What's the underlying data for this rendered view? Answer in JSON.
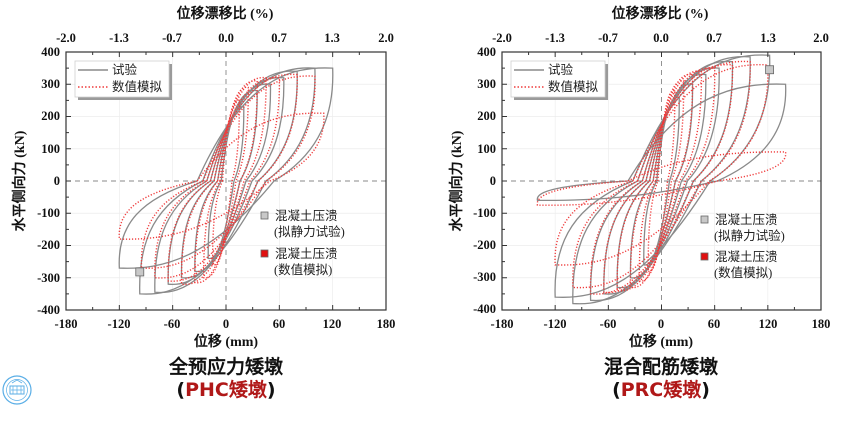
{
  "colors": {
    "test": "#8a8a8a",
    "sim": "#ef3b3b",
    "caption_red": "#b01818",
    "logo": "#5aaee6"
  },
  "logo": {
    "icon": "university-seal-icon"
  },
  "chart_data": [
    {
      "type": "line",
      "id": "phc",
      "top_xlabel": "位移漂移比 (%)",
      "top_ticks": [
        "-2.0",
        "-1.3",
        "-0.7",
        "0.0",
        "0.7",
        "1.3",
        "2.0"
      ],
      "xlabel": "位移 (mm)",
      "ylabel": "水平侧向力 (kN)",
      "xlim": [
        -180,
        180
      ],
      "ylim": [
        -400,
        400
      ],
      "x_ticks": [
        "-180",
        "-120",
        "-60",
        "0",
        "60",
        "120",
        "180"
      ],
      "y_ticks": [
        "400",
        "300",
        "200",
        "100",
        "0",
        "-100",
        "-200",
        "-300",
        "-400"
      ],
      "grid": true,
      "legend": {
        "position": "top-left",
        "entries": [
          "试验",
          "数值模拟"
        ]
      },
      "marker_legend": {
        "position": "right-middle",
        "test_lines": [
          "混凝土压溃",
          "(拟静力试验)"
        ],
        "sim_lines": [
          "混凝土压溃",
          "(数值模拟)"
        ]
      },
      "crush_point_test": [
        -97,
        -282
      ],
      "series": [
        {
          "name": "试验",
          "style": "solid",
          "peaks_pos": [
            [
              20,
              230
            ],
            [
              35,
              280
            ],
            [
              50,
              300
            ],
            [
              65,
              320
            ],
            [
              80,
              340
            ],
            [
              100,
              350
            ],
            [
              120,
              350
            ]
          ],
          "peaks_neg": [
            [
              -20,
              -240
            ],
            [
              -35,
              -280
            ],
            [
              -50,
              -300
            ],
            [
              -65,
              -320
            ],
            [
              -80,
              -345
            ],
            [
              -97,
              -350
            ],
            [
              -120,
              -270
            ]
          ]
        },
        {
          "name": "数值模拟",
          "style": "dotted",
          "peaks_pos": [
            [
              15,
              250
            ],
            [
              25,
              290
            ],
            [
              35,
              310
            ],
            [
              45,
              320
            ],
            [
              60,
              320
            ],
            [
              80,
              330
            ],
            [
              100,
              325
            ],
            [
              110,
              210
            ]
          ],
          "peaks_neg": [
            [
              -15,
              -260
            ],
            [
              -25,
              -300
            ],
            [
              -35,
              -315
            ],
            [
              -50,
              -320
            ],
            [
              -65,
              -310
            ],
            [
              -80,
              -300
            ],
            [
              -95,
              -270
            ],
            [
              -120,
              -180
            ]
          ]
        }
      ],
      "caption_line1": "全预应力矮墩",
      "caption_open": "(",
      "caption_red": "PHC矮墩",
      "caption_close": ")"
    },
    {
      "type": "line",
      "id": "prc",
      "top_xlabel": "位移漂移比 (%)",
      "top_ticks": [
        "-2.0",
        "-1.3",
        "-0.7",
        "0.0",
        "0.7",
        "1.3",
        "2.0"
      ],
      "xlabel": "位移 (mm)",
      "ylabel": "水平侧向力 (kN)",
      "xlim": [
        -180,
        180
      ],
      "ylim": [
        -400,
        400
      ],
      "x_ticks": [
        "-180",
        "-120",
        "-60",
        "0",
        "60",
        "120",
        "180"
      ],
      "y_ticks": [
        "400",
        "300",
        "200",
        "100",
        "0",
        "-100",
        "-200",
        "-300",
        "-400"
      ],
      "grid": true,
      "legend": {
        "position": "top-left",
        "entries": [
          "试验",
          "数值模拟"
        ]
      },
      "marker_legend": {
        "position": "right-middle",
        "test_lines": [
          "混凝土压溃",
          "(拟静力试验)"
        ],
        "sim_lines": [
          "混凝土压溃",
          "(数值模拟)"
        ]
      },
      "crush_point_test": [
        122,
        345
      ],
      "series": [
        {
          "name": "试验",
          "style": "solid",
          "peaks_pos": [
            [
              20,
              260
            ],
            [
              35,
              300
            ],
            [
              50,
              330
            ],
            [
              65,
              350
            ],
            [
              80,
              370
            ],
            [
              100,
              385
            ],
            [
              122,
              390
            ],
            [
              140,
              300
            ]
          ],
          "peaks_neg": [
            [
              -20,
              -260
            ],
            [
              -35,
              -300
            ],
            [
              -50,
              -330
            ],
            [
              -65,
              -350
            ],
            [
              -80,
              -370
            ],
            [
              -100,
              -380
            ],
            [
              -120,
              -360
            ],
            [
              -140,
              -60
            ]
          ]
        },
        {
          "name": "数值模拟",
          "style": "dotted",
          "peaks_pos": [
            [
              15,
              280
            ],
            [
              25,
              310
            ],
            [
              35,
              330
            ],
            [
              45,
              340
            ],
            [
              60,
              350
            ],
            [
              80,
              360
            ],
            [
              100,
              370
            ],
            [
              120,
              360
            ],
            [
              140,
              90
            ]
          ],
          "peaks_neg": [
            [
              -15,
              -280
            ],
            [
              -25,
              -310
            ],
            [
              -35,
              -330
            ],
            [
              -50,
              -340
            ],
            [
              -65,
              -345
            ],
            [
              -80,
              -350
            ],
            [
              -100,
              -330
            ],
            [
              -120,
              -260
            ],
            [
              -140,
              -75
            ]
          ]
        }
      ],
      "caption_line1": "混合配筋矮墩",
      "caption_open": "(",
      "caption_red": "PRC矮墩",
      "caption_close": ")"
    }
  ]
}
